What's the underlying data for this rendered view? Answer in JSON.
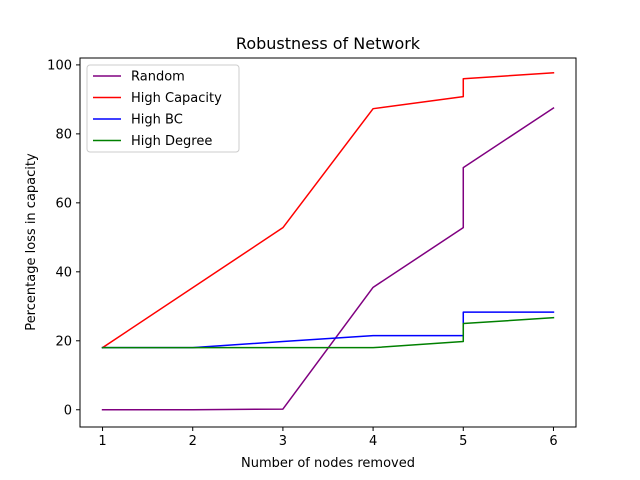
{
  "chart_data": {
    "type": "line",
    "title": "Robustness of Network",
    "xlabel": "Number of nodes removed",
    "ylabel": "Percentage loss in capacity",
    "xlim": [
      0.75,
      6.25
    ],
    "ylim": [
      -5,
      102
    ],
    "xticks": [
      1,
      2,
      3,
      4,
      5,
      6
    ],
    "yticks": [
      0,
      20,
      40,
      60,
      80,
      100
    ],
    "grid": false,
    "legend_position": "top-left",
    "series": [
      {
        "name": "Random",
        "color": "#800080",
        "x": [
          1,
          2,
          3,
          4,
          5,
          5,
          6
        ],
        "y": [
          0.0,
          0.0,
          0.2,
          35.5,
          52.8,
          70.2,
          87.5
        ]
      },
      {
        "name": "High Capacity",
        "color": "#ff0000",
        "x": [
          1,
          3,
          4,
          5,
          5,
          6
        ],
        "y": [
          18.0,
          52.8,
          87.3,
          90.8,
          96.0,
          97.7
        ]
      },
      {
        "name": "High BC",
        "color": "#0000ff",
        "x": [
          1,
          2,
          3,
          4,
          5,
          5,
          6
        ],
        "y": [
          18.0,
          18.0,
          19.8,
          21.5,
          21.5,
          28.3,
          28.3
        ]
      },
      {
        "name": "High Degree",
        "color": "#008000",
        "x": [
          1,
          2,
          3,
          4,
          5,
          5,
          6
        ],
        "y": [
          18.0,
          18.0,
          18.0,
          18.0,
          19.8,
          25.0,
          26.7
        ]
      }
    ]
  }
}
